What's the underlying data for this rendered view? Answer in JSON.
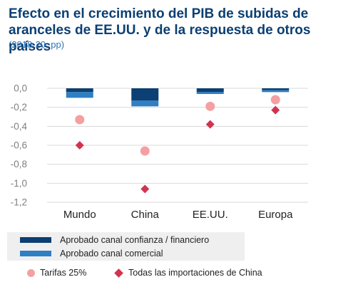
{
  "title": "Efecto en el crecimiento del PIB de subidas de aranceles de EE.UU. y de la respuesta de otros países",
  "subtitle": "(2018-20, pp)",
  "colors": {
    "dark_bar": "#0c3f73",
    "light_bar": "#2f7fc4",
    "circle": "#f4a0a3",
    "diamond": "#d1344f",
    "grid": "#d9d9d9",
    "axis_text": "#808080"
  },
  "legend": {
    "confianza": "Aprobado canal confianza / financiero",
    "comercial": "Aprobado canal comercial",
    "tarifas": "Tarifas 25%",
    "china": "Todas las importaciones de China"
  },
  "chart_data": {
    "type": "bar",
    "categories": [
      "Mundo",
      "China",
      "EE.UU.",
      "Europa"
    ],
    "series": [
      {
        "name": "Aprobado canal confianza / financiero",
        "kind": "stacked-bar",
        "values": [
          -0.04,
          -0.13,
          -0.04,
          -0.02
        ]
      },
      {
        "name": "Aprobado canal comercial",
        "kind": "stacked-bar",
        "values": [
          -0.06,
          -0.06,
          -0.02,
          -0.02
        ]
      },
      {
        "name": "Tarifas 25%",
        "kind": "marker-circle",
        "values": [
          -0.33,
          -0.66,
          -0.19,
          -0.12
        ]
      },
      {
        "name": "Todas las importaciones de China",
        "kind": "marker-diamond",
        "values": [
          -0.6,
          -1.06,
          -0.38,
          -0.23
        ]
      }
    ],
    "yticks": [
      "0,0",
      "-0,2",
      "-0,4",
      "-0,6",
      "-0,8",
      "-1,0",
      "-1,2"
    ],
    "ylim": [
      -1.2,
      0
    ],
    "grid": true
  }
}
